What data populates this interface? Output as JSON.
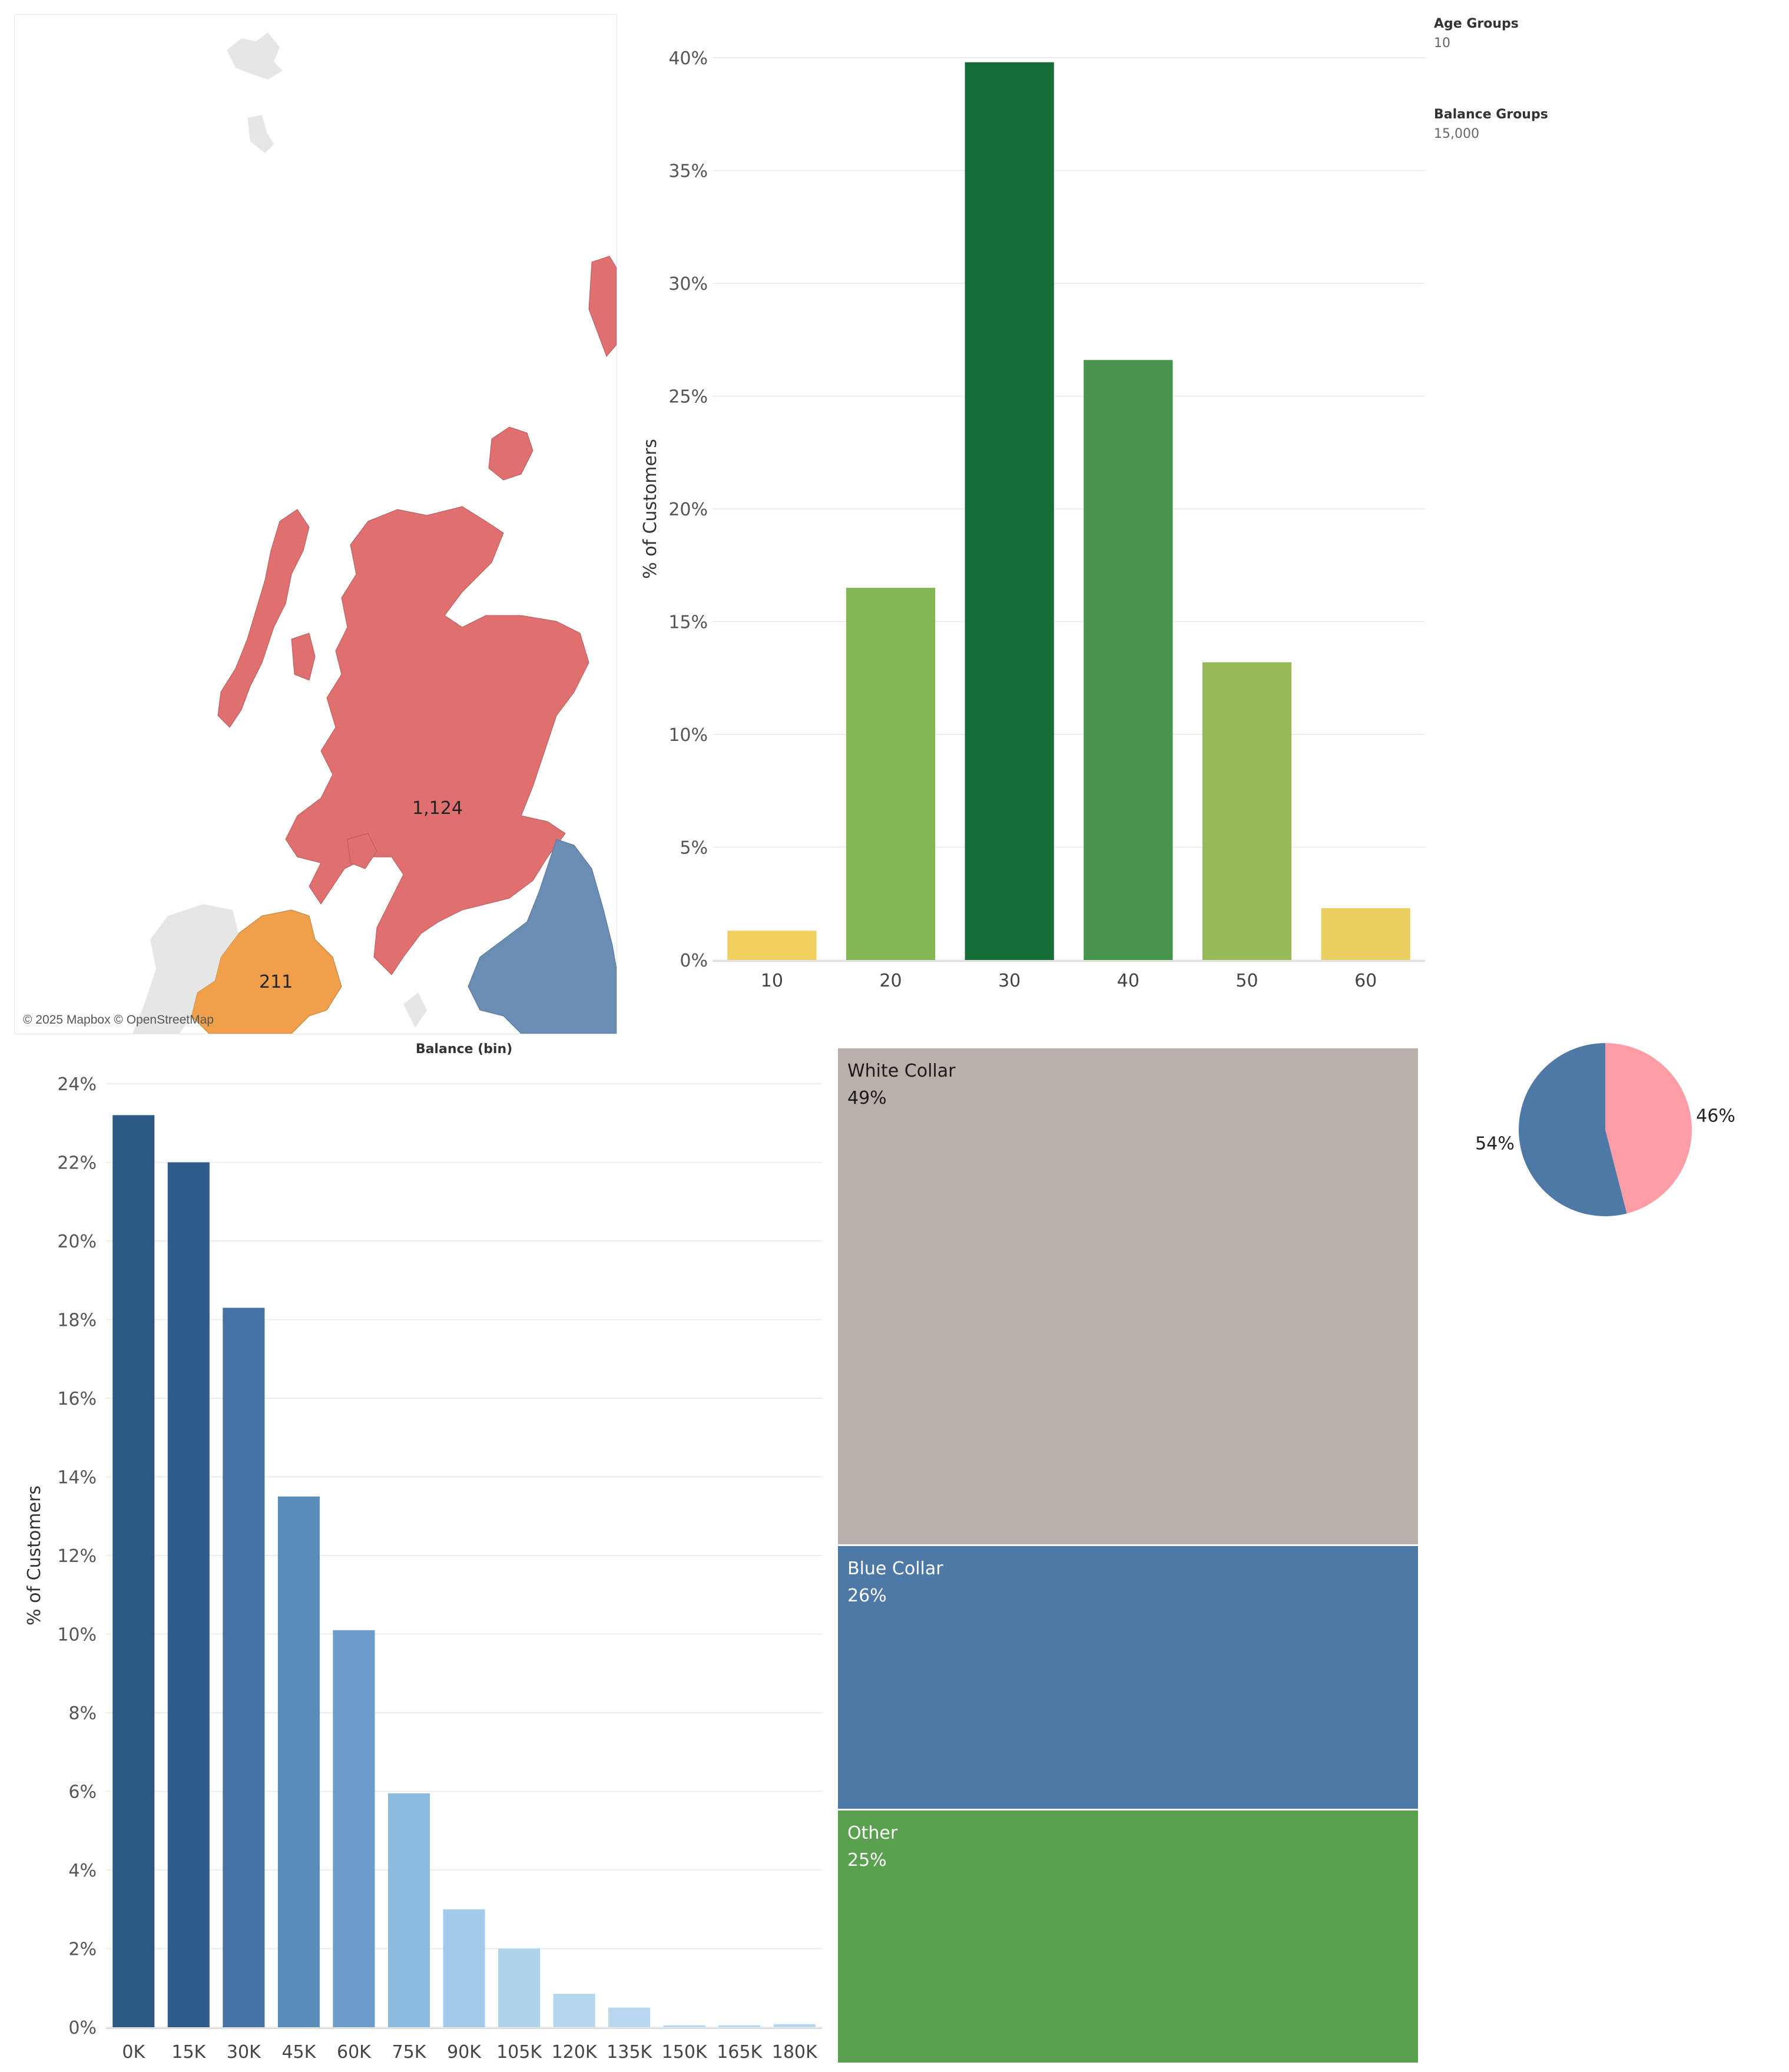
{
  "parameters": {
    "age_groups": {
      "title": "Age Groups",
      "value": "10"
    },
    "balance_groups": {
      "title": "Balance Groups",
      "value": "15,000"
    }
  },
  "map": {
    "credit": "© 2025 Mapbox © OpenStreetMap",
    "regions": [
      {
        "name": "Scotland",
        "value": "1,124",
        "color": "#e07070"
      },
      {
        "name": "Northern Ireland",
        "value": "211",
        "color": "#f0a04b"
      },
      {
        "name": "England (north)",
        "value": "",
        "color": "#6b8db3"
      }
    ],
    "land_color": "#e6e6e6"
  },
  "chart_data": [
    {
      "id": "age-chart",
      "type": "bar",
      "title": "",
      "xlabel": "",
      "ylabel": "% of Customers",
      "categories": [
        "10",
        "20",
        "30",
        "40",
        "50",
        "60"
      ],
      "values": [
        1.3,
        16.5,
        39.8,
        26.6,
        13.2,
        2.3
      ],
      "colors": [
        "#f0cf5f",
        "#84b656",
        "#166e38",
        "#48964e",
        "#97ba59",
        "#ebcf61"
      ],
      "ylim": [
        0,
        40
      ],
      "yticks": [
        "0%",
        "5%",
        "10%",
        "15%",
        "20%",
        "25%",
        "30%",
        "35%",
        "40%"
      ],
      "grid": true
    },
    {
      "id": "balance-chart",
      "type": "bar",
      "title": "Balance (bin)",
      "xlabel": "",
      "ylabel": "% of Customers",
      "categories": [
        "0K",
        "15K",
        "30K",
        "45K",
        "60K",
        "75K",
        "90K",
        "105K",
        "120K",
        "135K",
        "150K",
        "165K",
        "180K"
      ],
      "values": [
        23.2,
        22.0,
        18.3,
        13.5,
        10.1,
        5.95,
        3.0,
        2.0,
        0.85,
        0.5,
        0.05,
        0.05,
        0.08
      ],
      "colors": [
        "#2c5984",
        "#2f5c8b",
        "#4672a3",
        "#5a8cba",
        "#6d9ecb",
        "#8dbadf",
        "#a3cbe9",
        "#aed3ec",
        "#b4d6ee",
        "#b7d8ef",
        "#b7d8ef",
        "#b7d8ef",
        "#b7d8ef"
      ],
      "ylim": [
        0,
        24
      ],
      "yticks": [
        "0%",
        "2%",
        "4%",
        "6%",
        "8%",
        "10%",
        "12%",
        "14%",
        "16%",
        "18%",
        "20%",
        "22%",
        "24%"
      ],
      "grid": true
    },
    {
      "id": "occupation-treemap",
      "type": "treemap",
      "items": [
        {
          "label": "White Collar",
          "pct": "49%",
          "value": 49,
          "color": "#bab0ab",
          "text_color": "#1a1a1a"
        },
        {
          "label": "Blue Collar",
          "pct": "26%",
          "value": 26,
          "color": "#4e79a7",
          "text_color": "#ffffff"
        },
        {
          "label": "Other",
          "pct": "25%",
          "value": 25,
          "color": "#59a14f",
          "text_color": "#ffffff"
        }
      ]
    },
    {
      "id": "gender-pie",
      "type": "pie",
      "slices": [
        {
          "label": "46%",
          "value": 46,
          "color": "#ff9da7"
        },
        {
          "label": "54%",
          "value": 54,
          "color": "#4e79a7"
        }
      ]
    }
  ]
}
